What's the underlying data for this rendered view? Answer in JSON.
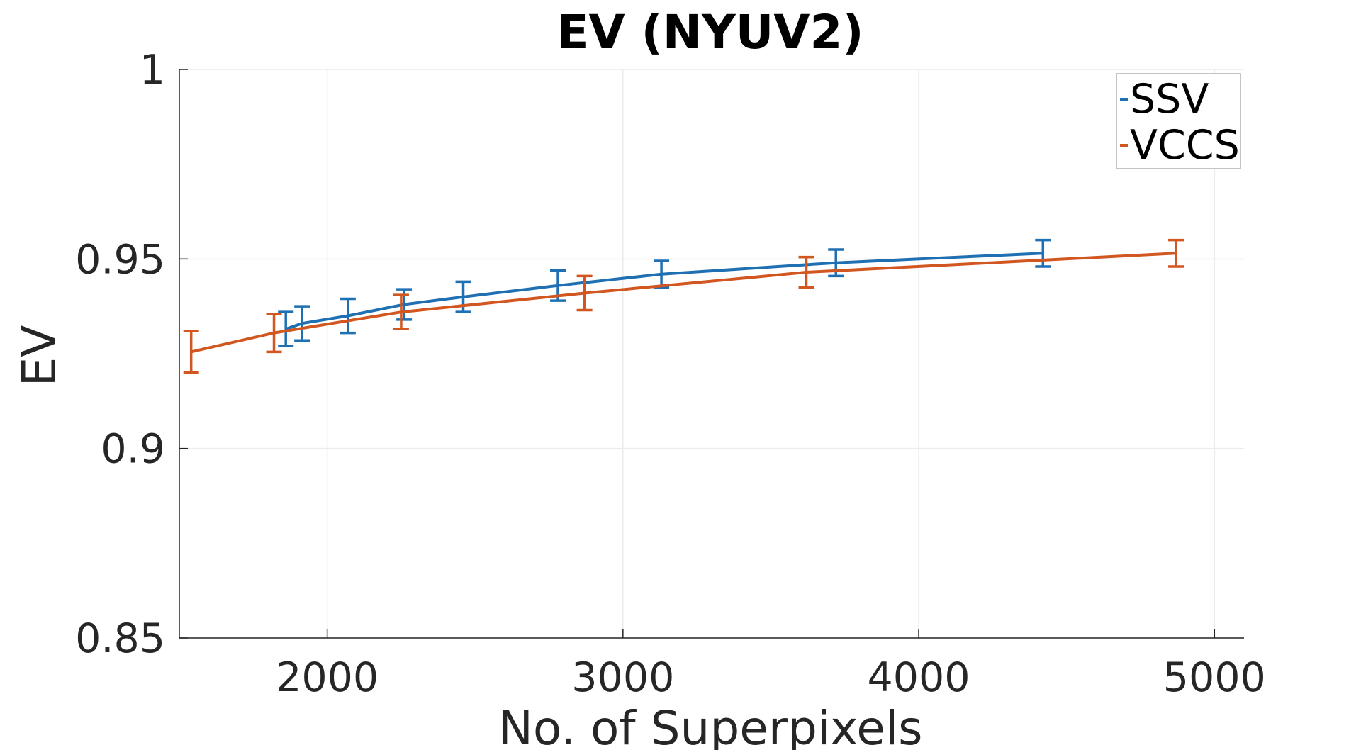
{
  "chart_data": {
    "type": "line",
    "title": "EV (NYUV2)",
    "xlabel": "No. of Superpixels",
    "ylabel": "EV",
    "xlim": [
      1500,
      5100
    ],
    "ylim": [
      0.85,
      1.0
    ],
    "xticks": [
      2000,
      3000,
      4000,
      5000
    ],
    "xtick_labels": [
      "2000",
      "3000",
      "4000",
      "5000"
    ],
    "yticks": [
      0.85,
      0.9,
      0.95,
      1.0
    ],
    "ytick_labels": [
      "0.85",
      "0.9",
      "0.95",
      "1"
    ],
    "grid": true,
    "legend_position": "top-right",
    "series": [
      {
        "name": "SSV",
        "color": "#1f6fb3",
        "x": [
          1860,
          1915,
          2070,
          2260,
          2460,
          2780,
          3130,
          3720,
          4420
        ],
        "y": [
          0.9315,
          0.933,
          0.935,
          0.938,
          0.94,
          0.943,
          0.946,
          0.949,
          0.9515
        ],
        "err": [
          0.0045,
          0.0045,
          0.0045,
          0.004,
          0.004,
          0.004,
          0.0035,
          0.0035,
          0.0035
        ]
      },
      {
        "name": "VCCS",
        "color": "#d2561f",
        "x": [
          1540,
          1820,
          2250,
          2870,
          3620,
          4870
        ],
        "y": [
          0.9255,
          0.9305,
          0.936,
          0.941,
          0.9465,
          0.9515
        ],
        "err": [
          0.0055,
          0.005,
          0.0045,
          0.0045,
          0.004,
          0.0035
        ]
      }
    ]
  }
}
